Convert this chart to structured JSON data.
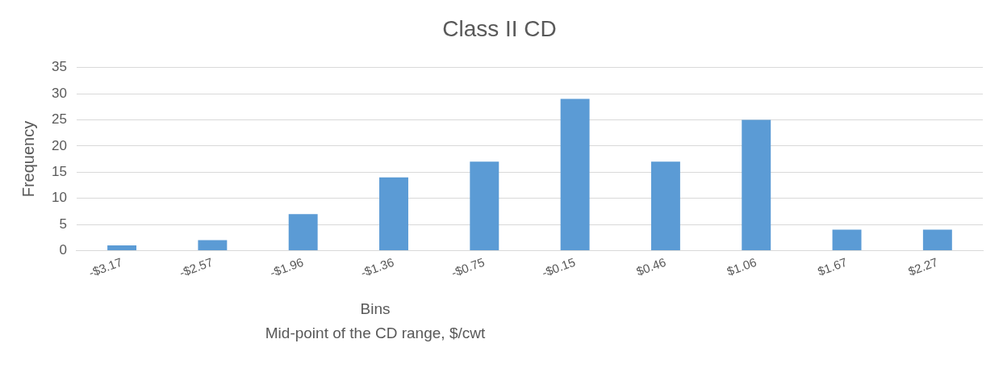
{
  "chart_data": {
    "type": "bar",
    "title": "Class II CD",
    "xlabel": "Bins",
    "ylabel": "Frequency",
    "annotations": [
      "Mid-point of the CD range, $/cwt"
    ],
    "categories": [
      "-$3.17",
      "-$2.57",
      "-$1.96",
      "-$1.36",
      "-$0.75",
      "-$0.15",
      "$0.46",
      "$1.06",
      "$1.67",
      "$2.27"
    ],
    "values": [
      1,
      2,
      7,
      14,
      17,
      29,
      17,
      25,
      4,
      4
    ],
    "color": "#5b9bd5",
    "ylim": [
      0,
      35
    ],
    "yticks": [
      0,
      5,
      10,
      15,
      20,
      25,
      30,
      35
    ],
    "grid": "y",
    "legend": false
  }
}
